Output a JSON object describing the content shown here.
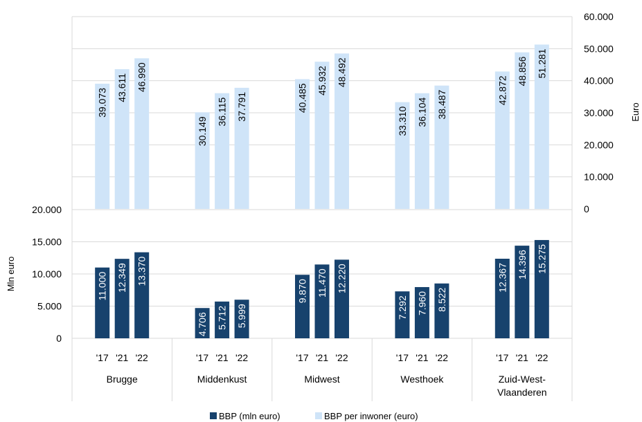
{
  "chart_data": {
    "type": "bar",
    "title": "",
    "regions": [
      "Brugge",
      "Middenkust",
      "Midwest",
      "Westhoek",
      "Zuid-West-Vlaanderen"
    ],
    "region_label_lines": [
      [
        "Brugge"
      ],
      [
        "Middenkust"
      ],
      [
        "Midwest"
      ],
      [
        "Westhoek"
      ],
      [
        "Zuid-West-",
        "Vlaanderen"
      ]
    ],
    "years": [
      "'17",
      "'21",
      "'22"
    ],
    "top_panel": {
      "series_name": "BBP per inwoner (euro)",
      "ylabel": "Euro",
      "ylim": [
        0,
        60000
      ],
      "yticks": [
        0,
        10000,
        20000,
        30000,
        40000,
        50000,
        60000
      ],
      "ytick_labels": [
        "0",
        "10.000",
        "20.000",
        "30.000",
        "40.000",
        "50.000",
        "60.000"
      ],
      "color": "#cfe4f8",
      "values": [
        [
          39073,
          43611,
          46990
        ],
        [
          30149,
          36115,
          37791
        ],
        [
          40485,
          45932,
          48492
        ],
        [
          33310,
          36104,
          38487
        ],
        [
          42872,
          48856,
          51281
        ]
      ],
      "value_labels": [
        [
          "39.073",
          "43.611",
          "46.990"
        ],
        [
          "30.149",
          "36.115",
          "37.791"
        ],
        [
          "40.485",
          "45.932",
          "48.492"
        ],
        [
          "33.310",
          "36.104",
          "38.487"
        ],
        [
          "42.872",
          "48.856",
          "51.281"
        ]
      ]
    },
    "bottom_panel": {
      "series_name": "BBP (mln euro)",
      "ylabel": "Mln euro",
      "ylim": [
        0,
        20000
      ],
      "yticks": [
        0,
        5000,
        10000,
        15000,
        20000
      ],
      "ytick_labels": [
        "0",
        "5.000",
        "10.000",
        "15.000",
        "20.000"
      ],
      "color": "#17426d",
      "values": [
        [
          11000,
          12349,
          13370
        ],
        [
          4706,
          5712,
          5999
        ],
        [
          9870,
          11470,
          12220
        ],
        [
          7292,
          7960,
          8522
        ],
        [
          12367,
          14396,
          15275
        ]
      ],
      "value_labels": [
        [
          "11.000",
          "12.349",
          "13.370"
        ],
        [
          "4.706",
          "5.712",
          "5.999"
        ],
        [
          "9.870",
          "11.470",
          "12.220"
        ],
        [
          "7.292",
          "7.960",
          "8.522"
        ],
        [
          "12.367",
          "14.396",
          "15.275"
        ]
      ]
    },
    "legend": {
      "position": "bottom",
      "entries": [
        {
          "name": "BBP (mln euro)",
          "color": "#17426d"
        },
        {
          "name": "BBP per inwoner (euro)",
          "color": "#cfe4f8"
        }
      ]
    },
    "grid": true
  }
}
